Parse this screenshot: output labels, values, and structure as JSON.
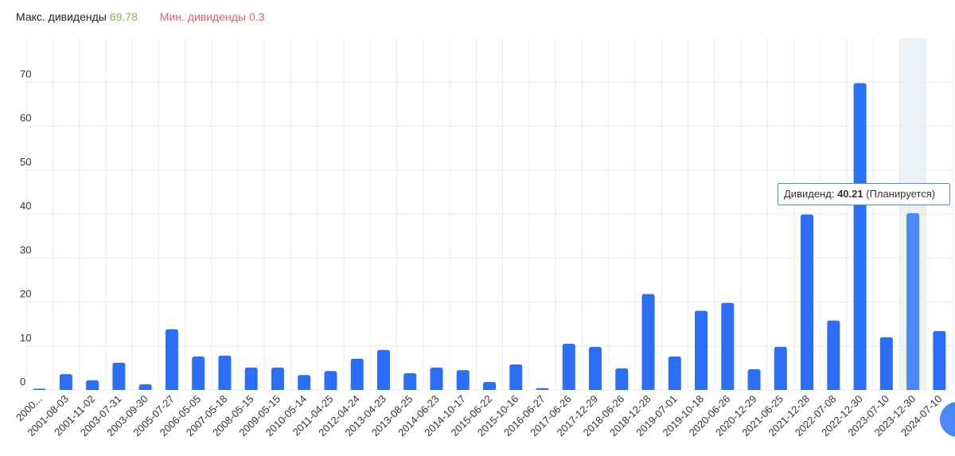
{
  "header": {
    "max_label": "Макс. дивиденды",
    "min_label": "Мин. дивиденды"
  },
  "tooltip": {
    "label": "Дивиденд:",
    "note": "(Планируется)"
  },
  "chart_data": {
    "type": "bar",
    "categories": [
      "2000...",
      "2001-08-03",
      "2001-11-02",
      "2003-07-31",
      "2003-09-30",
      "2005-07-27",
      "2006-05-05",
      "2007-05-18",
      "2008-05-15",
      "2009-05-15",
      "2010-05-14",
      "2011-04-25",
      "2012-04-24",
      "2013-04-23",
      "2013-08-25",
      "2014-06-23",
      "2014-10-17",
      "2015-06-22",
      "2015-10-16",
      "2016-06-27",
      "2017-06-26",
      "2017-12-29",
      "2018-06-26",
      "2018-12-28",
      "2019-07-01",
      "2019-10-18",
      "2020-06-26",
      "2020-12-29",
      "2021-06-25",
      "2021-12-28",
      "2022-07-08",
      "2022-12-30",
      "2023-07-10",
      "2023-12-30",
      "2024-07-10"
    ],
    "values": [
      0.3,
      3.6,
      2.2,
      6.2,
      1.3,
      13.8,
      7.6,
      7.8,
      5.1,
      5.1,
      3.4,
      4.3,
      7.1,
      9.1,
      3.8,
      5.1,
      4.5,
      1.8,
      5.8,
      0.4,
      10.5,
      9.8,
      4.9,
      21.8,
      7.6,
      18.0,
      19.8,
      4.7,
      9.8,
      39.9,
      15.8,
      69.78,
      12.0,
      40.21,
      13.4
    ],
    "color": "#2a6ff5",
    "ylim": [
      0,
      80
    ],
    "yticks": [
      0,
      10,
      20,
      30,
      40,
      50,
      60,
      70
    ],
    "grid": true
  }
}
